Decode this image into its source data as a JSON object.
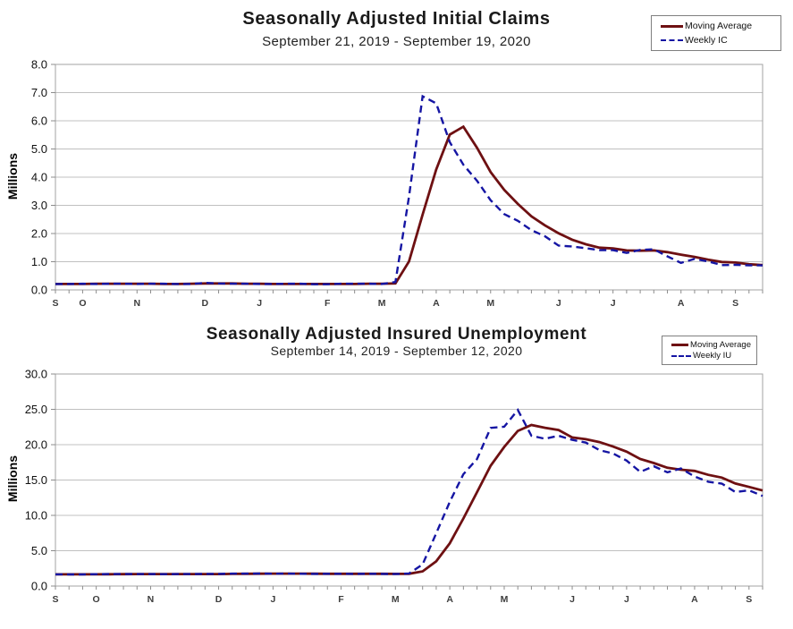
{
  "colors": {
    "moving_average": "#6e1012",
    "weekly": "#1515a3",
    "gridline": "#c0c0c0",
    "plot_border": "#a3a3a3",
    "tick": "#8c8c8c"
  },
  "chart_data": [
    {
      "type": "line",
      "title": "Seasonally Adjusted Initial Claims",
      "subtitle": "September 21, 2019 - September 19, 2020",
      "ylabel": "Millions",
      "ylim": [
        0,
        8.0
      ],
      "ytick_step": 1.0,
      "ytick_labels": [
        "0.0",
        "1.0",
        "2.0",
        "3.0",
        "4.0",
        "5.0",
        "6.0",
        "7.0",
        "8.0"
      ],
      "grid": "horizontal",
      "legend_position": "top-right",
      "x_unit": "week",
      "month_labels": [
        "S",
        "O",
        "N",
        "D",
        "J",
        "F",
        "M",
        "A",
        "M",
        "J",
        "J",
        "A",
        "S"
      ],
      "month_week_index": [
        0,
        2,
        6,
        11,
        15,
        20,
        24,
        28,
        32,
        37,
        41,
        46,
        50
      ],
      "series": [
        {
          "name": "Moving Average",
          "color": "#6e1012",
          "style": "solid",
          "values": [
            0.21,
            0.21,
            0.21,
            0.22,
            0.22,
            0.22,
            0.22,
            0.22,
            0.21,
            0.21,
            0.22,
            0.23,
            0.23,
            0.23,
            0.22,
            0.22,
            0.21,
            0.21,
            0.21,
            0.21,
            0.21,
            0.21,
            0.21,
            0.22,
            0.22,
            0.23,
            1.01,
            2.67,
            4.27,
            5.51,
            5.79,
            5.04,
            4.18,
            3.55,
            3.05,
            2.61,
            2.29,
            2.01,
            1.78,
            1.62,
            1.5,
            1.47,
            1.4,
            1.39,
            1.4,
            1.34,
            1.25,
            1.17,
            1.07,
            0.99,
            0.97,
            0.91,
            0.88
          ]
        },
        {
          "name": "Weekly IC",
          "color": "#1515a3",
          "style": "dashed",
          "values": [
            0.21,
            0.21,
            0.22,
            0.21,
            0.22,
            0.22,
            0.21,
            0.22,
            0.22,
            0.21,
            0.21,
            0.25,
            0.23,
            0.22,
            0.22,
            0.21,
            0.21,
            0.22,
            0.22,
            0.2,
            0.2,
            0.22,
            0.22,
            0.22,
            0.21,
            0.28,
            3.31,
            6.87,
            6.62,
            5.24,
            4.44,
            3.87,
            3.18,
            2.69,
            2.45,
            2.12,
            1.9,
            1.57,
            1.54,
            1.48,
            1.41,
            1.41,
            1.31,
            1.42,
            1.44,
            1.19,
            0.96,
            1.1,
            1.01,
            0.88,
            0.89,
            0.87,
            0.87
          ]
        }
      ]
    },
    {
      "type": "line",
      "title": "Seasonally Adjusted Insured Unemployment",
      "subtitle": "September 14, 2019 - September 12, 2020",
      "ylabel": "Millions",
      "ylim": [
        0,
        30.0
      ],
      "ytick_step": 5.0,
      "ytick_labels": [
        "0.0",
        "5.0",
        "10.0",
        "15.0",
        "20.0",
        "25.0",
        "30.0"
      ],
      "grid": "horizontal",
      "legend_position": "top-right",
      "x_unit": "week",
      "month_labels": [
        "S",
        "O",
        "N",
        "D",
        "J",
        "F",
        "M",
        "A",
        "M",
        "J",
        "J",
        "A",
        "S"
      ],
      "month_week_index": [
        0,
        3,
        7,
        12,
        16,
        21,
        25,
        29,
        33,
        38,
        42,
        47,
        51
      ],
      "series": [
        {
          "name": "Moving Average",
          "color": "#6e1012",
          "style": "solid",
          "values": [
            1.66,
            1.66,
            1.66,
            1.66,
            1.67,
            1.68,
            1.69,
            1.69,
            1.69,
            1.69,
            1.69,
            1.7,
            1.7,
            1.72,
            1.74,
            1.75,
            1.76,
            1.76,
            1.76,
            1.75,
            1.74,
            1.73,
            1.73,
            1.73,
            1.73,
            1.72,
            1.73,
            2.07,
            3.5,
            6.05,
            9.56,
            13.29,
            17.02,
            19.68,
            21.95,
            22.78,
            22.39,
            22.07,
            21.02,
            20.77,
            20.37,
            19.74,
            19.01,
            17.97,
            17.4,
            16.74,
            16.46,
            16.29,
            15.74,
            15.34,
            14.51,
            14.02,
            13.52
          ]
        },
        {
          "name": "Weekly IU",
          "color": "#1515a3",
          "style": "dashed",
          "values": [
            1.66,
            1.65,
            1.65,
            1.68,
            1.69,
            1.69,
            1.69,
            1.69,
            1.68,
            1.7,
            1.69,
            1.72,
            1.72,
            1.76,
            1.76,
            1.77,
            1.75,
            1.77,
            1.73,
            1.72,
            1.74,
            1.73,
            1.72,
            1.73,
            1.72,
            1.7,
            1.77,
            3.06,
            7.45,
            11.91,
            15.82,
            17.97,
            22.38,
            22.55,
            24.91,
            21.27,
            20.84,
            21.27,
            20.68,
            20.29,
            19.23,
            18.76,
            17.75,
            16.15,
            16.95,
            16.09,
            16.63,
            15.49,
            14.76,
            14.49,
            13.29,
            13.54,
            12.75
          ]
        }
      ]
    }
  ]
}
